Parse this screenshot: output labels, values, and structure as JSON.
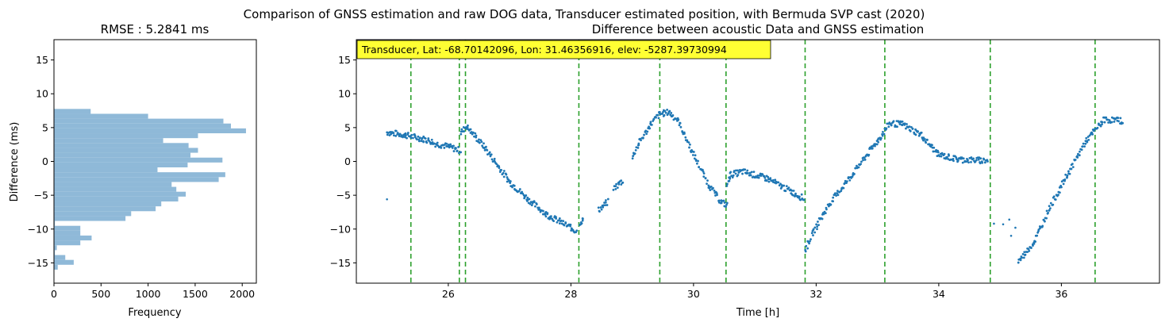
{
  "suptitle": "Comparison of GNSS estimation and raw DOG data, Transducer estimated position, with Bermuda SVP cast (2020)",
  "chart_data": [
    {
      "type": "bar",
      "orientation": "horizontal",
      "title": "RMSE : 5.2841 ms",
      "xlabel": "Frequency",
      "ylabel": "Difference (ms)",
      "xlim": [
        0,
        2150
      ],
      "ylim": [
        -18,
        18
      ],
      "xticks": [
        0,
        500,
        1000,
        1500,
        2000
      ],
      "yticks": [
        -15,
        -10,
        -5,
        0,
        5,
        10,
        15
      ],
      "bar_color": "#8fb9d8",
      "bin_width": 0.72,
      "bins_start": [
        -16.0,
        -15.28,
        -14.56,
        -13.84,
        -13.12,
        -12.4,
        -11.68,
        -10.96,
        -10.24,
        -9.52,
        -8.8,
        -8.08,
        -7.36,
        -6.64,
        -5.92,
        -5.2,
        -4.48,
        -3.76,
        -3.04,
        -2.32,
        -1.6,
        -0.88,
        -0.16,
        0.56,
        1.28,
        2.0,
        2.72,
        3.44,
        4.16,
        4.88,
        5.6,
        6.32,
        7.04
      ],
      "counts": [
        40,
        210,
        120,
        10,
        30,
        280,
        400,
        280,
        280,
        10,
        760,
        820,
        1080,
        1140,
        1320,
        1400,
        1300,
        1250,
        1750,
        1820,
        1100,
        1420,
        1790,
        1450,
        1530,
        1430,
        1160,
        1530,
        2040,
        1880,
        1800,
        1000,
        390
      ]
    },
    {
      "type": "scatter",
      "title": "Difference between acoustic Data and GNSS estimation",
      "xlabel": "Time [h]",
      "ylabel": "",
      "xlim": [
        24.5,
        37.6
      ],
      "ylim": [
        -18,
        18
      ],
      "xticks": [
        26,
        28,
        30,
        32,
        34,
        36
      ],
      "yticks": [
        -15,
        -10,
        -5,
        0,
        5,
        10,
        15
      ],
      "point_color": "#1f77b4",
      "annotation": "Transducer, Lat: -68.70142096, Lon: 31.46356916, elev: -5287.39730994",
      "annotation_bg": "#ffff33",
      "vlines": [
        25.39,
        26.18,
        26.28,
        28.13,
        29.45,
        30.53,
        31.82,
        33.12,
        34.84,
        36.55
      ],
      "vline_color": "#2ca02c",
      "segments": [
        [
          [
            25.0,
            4.3
          ],
          [
            25.3,
            3.9
          ],
          [
            25.6,
            3.3
          ],
          [
            25.75,
            2.9
          ]
        ],
        [
          [
            25.75,
            2.7
          ],
          [
            26.0,
            2.2
          ],
          [
            26.2,
            1.6
          ]
        ],
        [
          [
            26.2,
            4.2
          ],
          [
            26.3,
            5.2
          ],
          [
            26.6,
            2.0
          ],
          [
            27.0,
            -3.0
          ],
          [
            27.3,
            -5.6
          ],
          [
            27.6,
            -7.8
          ],
          [
            28.0,
            -9.8
          ],
          [
            28.1,
            -10.4
          ]
        ],
        [
          [
            28.15,
            -9.0
          ],
          [
            28.2,
            -8.6
          ]
        ],
        [
          [
            28.45,
            -7.2
          ],
          [
            28.6,
            -6.0
          ]
        ],
        [
          [
            28.7,
            -4.0
          ],
          [
            28.85,
            -2.8
          ]
        ],
        [
          [
            29.0,
            0.5
          ],
          [
            29.1,
            2.5
          ],
          [
            29.3,
            5.5
          ],
          [
            29.45,
            7.0
          ],
          [
            29.6,
            7.3
          ],
          [
            29.75,
            6.0
          ],
          [
            30.0,
            1.0
          ],
          [
            30.25,
            -3.5
          ],
          [
            30.45,
            -6.0
          ],
          [
            30.55,
            -6.5
          ]
        ],
        [
          [
            30.55,
            -3.5
          ],
          [
            30.6,
            -2.0
          ],
          [
            30.8,
            -1.5
          ],
          [
            31.2,
            -2.5
          ],
          [
            31.6,
            -4.5
          ],
          [
            31.8,
            -5.5
          ]
        ],
        [
          [
            31.82,
            -13.2
          ],
          [
            31.95,
            -10.5
          ],
          [
            32.2,
            -6.5
          ],
          [
            32.6,
            -1.8
          ],
          [
            33.0,
            3.0
          ],
          [
            33.2,
            5.6
          ],
          [
            33.4,
            5.5
          ],
          [
            33.7,
            4.0
          ],
          [
            34.0,
            1.0
          ],
          [
            34.3,
            0.3
          ],
          [
            34.8,
            0.1
          ]
        ],
        [
          [
            35.3,
            -14.8
          ],
          [
            35.55,
            -12.0
          ],
          [
            35.8,
            -7.0
          ],
          [
            36.1,
            -2.0
          ],
          [
            36.4,
            3.0
          ],
          [
            36.7,
            6.2
          ],
          [
            37.0,
            6.0
          ]
        ]
      ],
      "isolated_points": [
        [
          25.0,
          -5.6
        ],
        [
          35.05,
          -9.3
        ],
        [
          35.15,
          -8.6
        ],
        [
          35.25,
          -9.8
        ],
        [
          35.18,
          -11.0
        ],
        [
          34.9,
          -9.2
        ]
      ]
    }
  ]
}
